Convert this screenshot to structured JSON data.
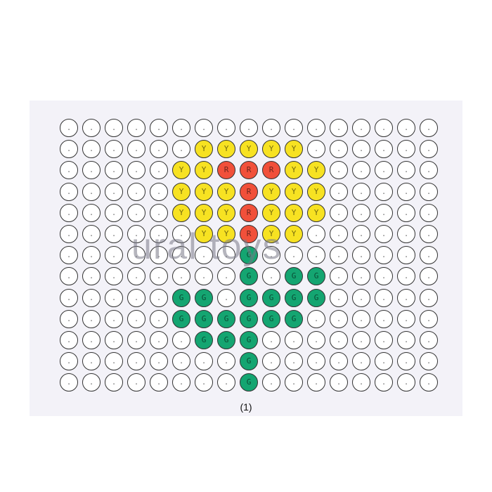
{
  "card": {
    "label": "(1)",
    "watermark": "ural toys",
    "columns": 17,
    "rows": 13,
    "colors": {
      ".": "#ffffff",
      "Y": "#f7e222",
      "R": "#f1503a",
      "G": "#14a571"
    },
    "pattern": [
      ".................",
      "......YYYYY......",
      ".....YYRRRYY.....",
      ".....YYYRYYY.....",
      ".....YYYRYYY.....",
      "......YYRYY......",
      "........G........",
      "........G.GG.....",
      ".....GG.GGGG.....",
      ".....GGGGGG......",
      "......GGG........",
      "........G........",
      "........G........"
    ]
  }
}
